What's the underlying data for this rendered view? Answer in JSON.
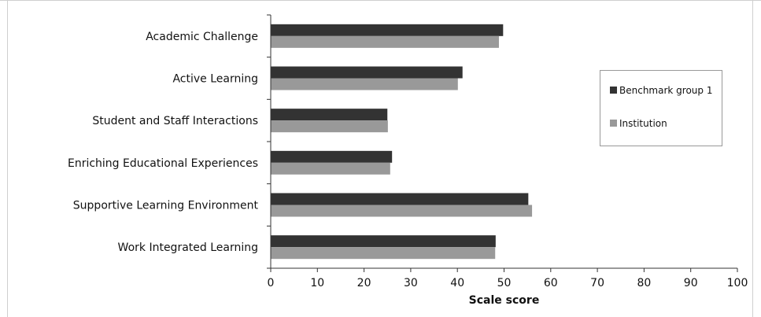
{
  "chart_data": {
    "type": "bar",
    "orientation": "horizontal",
    "categories": [
      "Academic Challenge",
      "Active Learning",
      "Student and Staff Interactions",
      "Enriching Educational Experiences",
      "Supportive Learning Environment",
      "Work Integrated Learning"
    ],
    "series": [
      {
        "name": "Benchmark group 1",
        "color": "#333333",
        "values": [
          49.8,
          41.1,
          25.0,
          26.0,
          55.2,
          48.2
        ]
      },
      {
        "name": "Institution",
        "color": "#999999",
        "values": [
          48.9,
          40.1,
          25.1,
          25.6,
          56.0,
          48.1
        ]
      }
    ],
    "title": "",
    "xlabel": "Scale score",
    "ylabel": "",
    "xlim": [
      0,
      100
    ],
    "xticks": [
      0,
      10,
      20,
      30,
      40,
      50,
      60,
      70,
      80,
      90,
      100
    ],
    "grid": false,
    "legend_position": "right"
  }
}
